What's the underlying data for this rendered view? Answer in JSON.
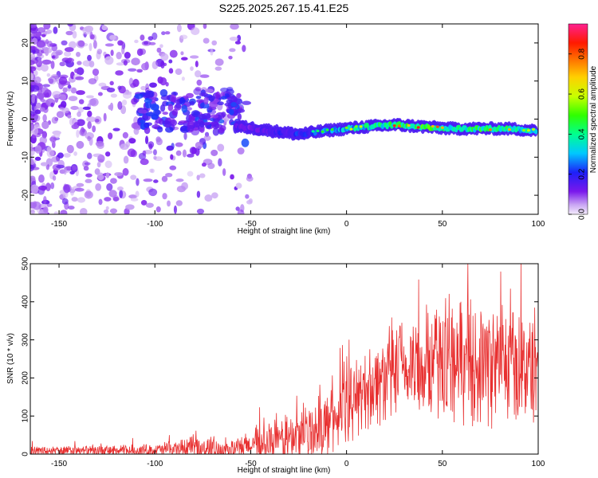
{
  "title": "S225.2025.267.15.41.E25",
  "chart_data": [
    {
      "type": "heatmap",
      "xlabel": "Height of straight line (km)",
      "ylabel": "Frequency (Hz)",
      "xlim": [
        -165,
        100
      ],
      "ylim": [
        -25,
        25
      ],
      "xticks": [
        -150,
        -100,
        -50,
        0,
        50,
        100
      ],
      "yticks": [
        -20,
        -10,
        0,
        10,
        20
      ],
      "colorbar": {
        "label": "Normalized spectral amplitude",
        "range": [
          0,
          0.95
        ],
        "ticks": [
          0.0,
          0.2,
          0.4,
          0.6,
          0.8
        ]
      },
      "ridge_frequency": {
        "x": [
          -55,
          -40,
          -25,
          -10,
          0,
          10,
          25,
          40,
          55,
          70,
          85,
          98
        ],
        "freq": [
          -2,
          -3,
          -4,
          -3,
          -2.5,
          -2,
          -1.5,
          -2,
          -2.5,
          -2.5,
          -2.5,
          -3
        ],
        "amplitude": [
          0.25,
          0.3,
          0.35,
          0.45,
          0.55,
          0.65,
          0.75,
          0.8,
          0.7,
          0.75,
          0.7,
          0.6
        ]
      }
    },
    {
      "type": "line",
      "xlabel": "Height of straight line (km)",
      "ylabel": "SNR (10 * v/v)",
      "xlim": [
        -165,
        100
      ],
      "ylim": [
        0,
        500
      ],
      "xticks": [
        -150,
        -100,
        -50,
        0,
        50,
        100
      ],
      "yticks": [
        0,
        100,
        200,
        300,
        400,
        500
      ],
      "color": "#e83030",
      "trend": {
        "x": [
          -165,
          -130,
          -100,
          -80,
          -70,
          -60,
          -50,
          -40,
          -30,
          -20,
          -10,
          0,
          10,
          20,
          30,
          40,
          50,
          60,
          70,
          80,
          90,
          100
        ],
        "baseline": [
          8,
          8,
          10,
          15,
          12,
          12,
          20,
          30,
          40,
          55,
          80,
          120,
          170,
          200,
          220,
          235,
          240,
          245,
          240,
          235,
          230,
          230
        ],
        "spread": [
          15,
          15,
          18,
          35,
          30,
          25,
          45,
          55,
          70,
          80,
          90,
          100,
          110,
          130,
          140,
          150,
          160,
          170,
          170,
          165,
          160,
          160
        ]
      }
    }
  ]
}
